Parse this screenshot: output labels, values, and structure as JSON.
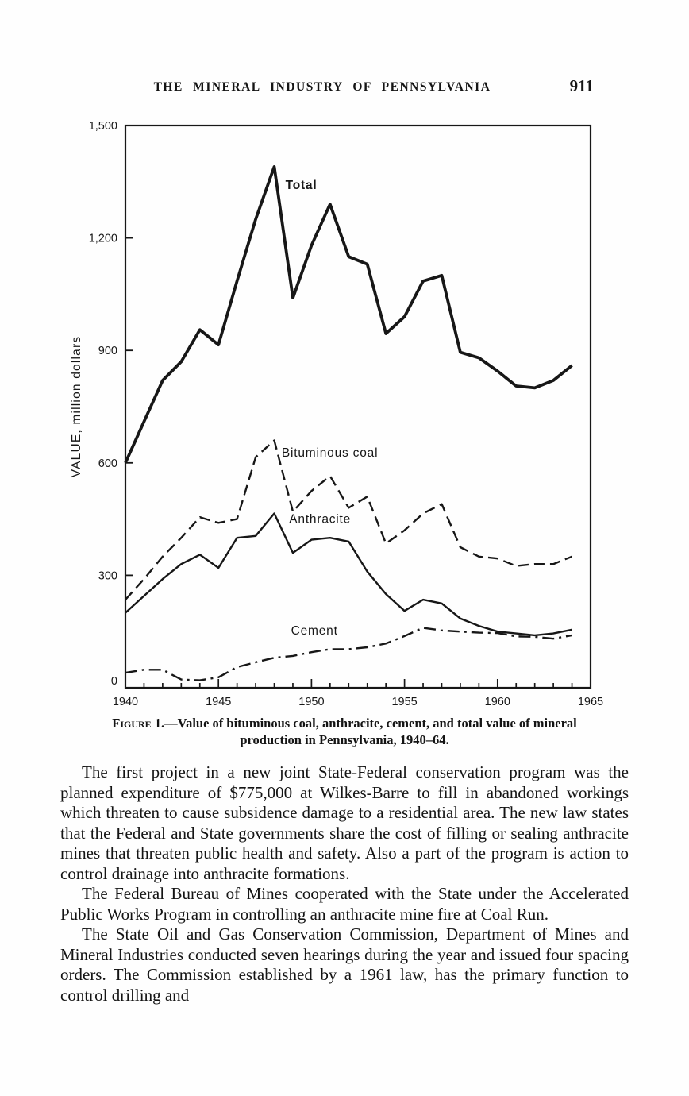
{
  "header": {
    "title": "THE MINERAL INDUSTRY OF PENNSYLVANIA",
    "page_number": "911"
  },
  "figure": {
    "caption_label": "Figure 1.",
    "caption_text": "—Value of bituminous coal, anthracite, cement, and total value of mineral production in Pennsylvania, 1940–64."
  },
  "chart_data": {
    "type": "line",
    "title": "",
    "xlabel": "",
    "ylabel": "VALUE, million dollars",
    "xlim": [
      1940,
      1965
    ],
    "ylim": [
      0,
      1500
    ],
    "grid": false,
    "legend_position": "inline-labels",
    "x_ticks": [
      1940,
      1945,
      1950,
      1955,
      1960,
      1965
    ],
    "x_tick_labels": [
      "1940",
      "1945",
      "1950",
      "1955",
      "1960",
      "1965"
    ],
    "y_ticks": [
      0,
      300,
      600,
      900,
      1200,
      1500
    ],
    "y_tick_labels": [
      "0",
      "300",
      "600",
      "900",
      "1,200",
      "1,500"
    ],
    "x": [
      1940,
      1941,
      1942,
      1943,
      1944,
      1945,
      1946,
      1947,
      1948,
      1949,
      1950,
      1951,
      1952,
      1953,
      1954,
      1955,
      1956,
      1957,
      1958,
      1959,
      1960,
      1961,
      1962,
      1963,
      1964
    ],
    "series": [
      {
        "name": "Total",
        "line_style": "solid-thick",
        "values": [
          600,
          710,
          820,
          870,
          955,
          915,
          1085,
          1250,
          1390,
          1040,
          1180,
          1290,
          1150,
          1130,
          945,
          990,
          1085,
          1100,
          895,
          880,
          845,
          805,
          800,
          820,
          860
        ],
        "label_at": {
          "x": 1948.6,
          "y": 1330
        }
      },
      {
        "name": "Bituminous coal",
        "line_style": "dashed",
        "values": [
          235,
          290,
          350,
          400,
          455,
          440,
          450,
          615,
          660,
          470,
          525,
          565,
          480,
          510,
          385,
          420,
          465,
          490,
          375,
          350,
          345,
          325,
          330,
          330,
          350
        ],
        "label_at": {
          "x": 1948.4,
          "y": 616
        }
      },
      {
        "name": "Anthracite",
        "line_style": "solid",
        "values": [
          200,
          245,
          290,
          330,
          355,
          320,
          400,
          405,
          465,
          360,
          395,
          400,
          390,
          310,
          250,
          205,
          235,
          225,
          185,
          165,
          150,
          145,
          140,
          145,
          155
        ],
        "label_at": {
          "x": 1948.8,
          "y": 440
        }
      },
      {
        "name": "Cement",
        "line_style": "dash-dot",
        "values": [
          40,
          48,
          48,
          22,
          20,
          28,
          55,
          68,
          80,
          85,
          95,
          103,
          103,
          108,
          118,
          138,
          160,
          153,
          150,
          147,
          146,
          137,
          136,
          131,
          140
        ],
        "label_at": {
          "x": 1948.9,
          "y": 142
        }
      }
    ]
  },
  "body": {
    "paragraphs": [
      "The first project in a new joint State-Federal conservation program was the planned expenditure of $775,000 at Wilkes-Barre to fill in abandoned workings which threaten to cause subsidence damage to a residential area. The new law states that the Federal and State governments share the cost of filling or sealing anthracite mines that threaten public health and safety. Also a part of the program is action to control drainage into anthracite formations.",
      "The Federal Bureau of Mines cooperated with the State under the Accelerated Public Works Program in controlling an anthracite mine fire at Coal Run.",
      "The State Oil and Gas Conservation Commission, Department of Mines and Mineral Industries conducted seven hearings during the year and issued four spacing orders. The Commission established by a 1961 law, has the primary function to control drilling and"
    ]
  }
}
